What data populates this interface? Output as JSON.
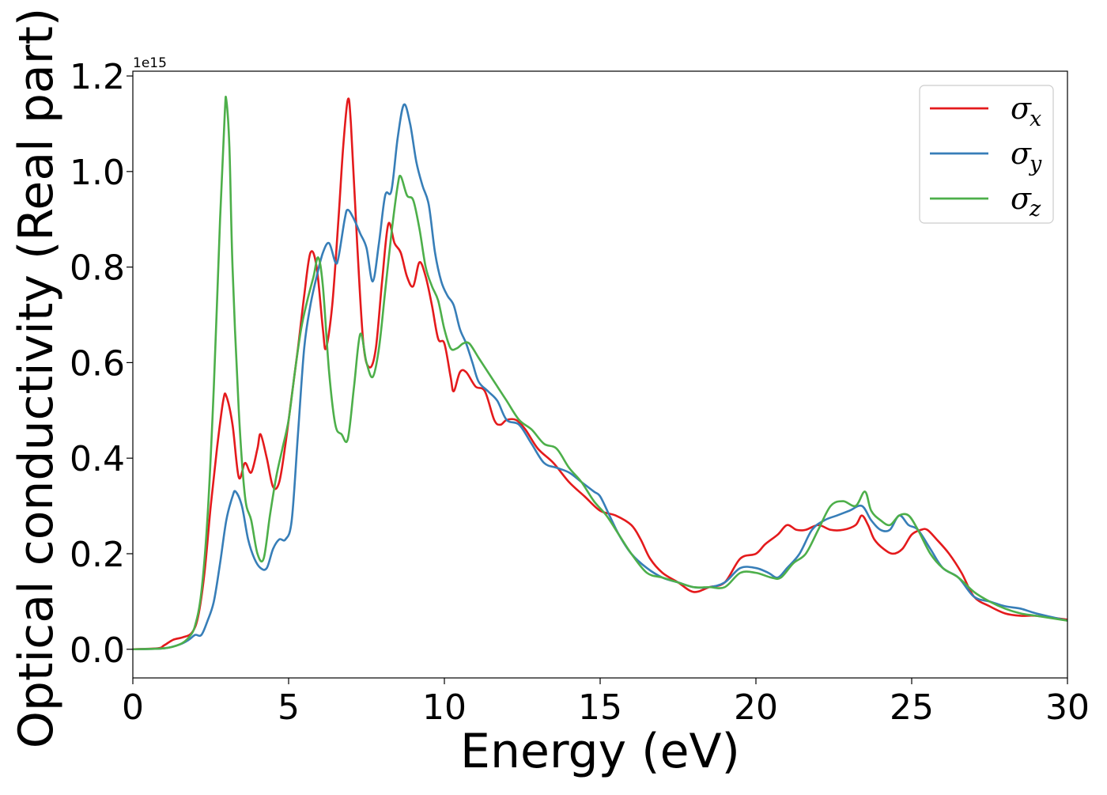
{
  "chart_data": {
    "type": "line",
    "title": "",
    "xlabel": "Energy (eV)",
    "ylabel": "Optical conductivity (Real part)",
    "xlim": [
      0,
      30
    ],
    "ylim": [
      -0.06,
      1.21
    ],
    "xticks": [
      0,
      5,
      10,
      15,
      20,
      25,
      30
    ],
    "xtick_labels": [
      "0",
      "5",
      "10",
      "15",
      "20",
      "25",
      "30"
    ],
    "yticks": [
      0.0,
      0.2,
      0.4,
      0.6,
      0.8,
      1.0,
      1.2
    ],
    "ytick_labels": [
      "0.0",
      "0.2",
      "0.4",
      "0.6",
      "0.8",
      "1.0",
      "1.2"
    ],
    "y_offset_text": "1e15",
    "grid": false,
    "legend_position": "top-right",
    "series": [
      {
        "name": "σx",
        "legend_symbol": "σ",
        "legend_subscript": "x",
        "color": "#e41a1c",
        "points": [
          [
            0,
            0
          ],
          [
            0.8,
            0.002
          ],
          [
            1.0,
            0.008
          ],
          [
            1.3,
            0.02
          ],
          [
            1.6,
            0.025
          ],
          [
            1.9,
            0.035
          ],
          [
            2.1,
            0.07
          ],
          [
            2.3,
            0.16
          ],
          [
            2.5,
            0.3
          ],
          [
            2.7,
            0.42
          ],
          [
            2.9,
            0.52
          ],
          [
            3.0,
            0.53
          ],
          [
            3.2,
            0.47
          ],
          [
            3.4,
            0.36
          ],
          [
            3.6,
            0.39
          ],
          [
            3.8,
            0.37
          ],
          [
            4.0,
            0.42
          ],
          [
            4.1,
            0.45
          ],
          [
            4.3,
            0.4
          ],
          [
            4.5,
            0.34
          ],
          [
            4.7,
            0.35
          ],
          [
            4.9,
            0.43
          ],
          [
            5.1,
            0.53
          ],
          [
            5.3,
            0.63
          ],
          [
            5.5,
            0.74
          ],
          [
            5.7,
            0.83
          ],
          [
            5.9,
            0.8
          ],
          [
            6.1,
            0.67
          ],
          [
            6.2,
            0.63
          ],
          [
            6.4,
            0.72
          ],
          [
            6.6,
            0.9
          ],
          [
            6.75,
            1.05
          ],
          [
            6.9,
            1.15
          ],
          [
            7.0,
            1.1
          ],
          [
            7.2,
            0.85
          ],
          [
            7.4,
            0.64
          ],
          [
            7.6,
            0.59
          ],
          [
            7.8,
            0.63
          ],
          [
            8.0,
            0.77
          ],
          [
            8.2,
            0.89
          ],
          [
            8.4,
            0.85
          ],
          [
            8.6,
            0.83
          ],
          [
            8.8,
            0.78
          ],
          [
            9.0,
            0.76
          ],
          [
            9.2,
            0.81
          ],
          [
            9.4,
            0.78
          ],
          [
            9.6,
            0.72
          ],
          [
            9.8,
            0.65
          ],
          [
            10.0,
            0.64
          ],
          [
            10.2,
            0.57
          ],
          [
            10.3,
            0.54
          ],
          [
            10.5,
            0.58
          ],
          [
            10.7,
            0.58
          ],
          [
            11.0,
            0.55
          ],
          [
            11.3,
            0.54
          ],
          [
            11.6,
            0.48
          ],
          [
            11.8,
            0.47
          ],
          [
            12.0,
            0.48
          ],
          [
            12.3,
            0.48
          ],
          [
            12.6,
            0.46
          ],
          [
            13.0,
            0.42
          ],
          [
            13.5,
            0.39
          ],
          [
            14.0,
            0.35
          ],
          [
            14.5,
            0.32
          ],
          [
            15.0,
            0.29
          ],
          [
            15.5,
            0.28
          ],
          [
            16.0,
            0.26
          ],
          [
            16.3,
            0.23
          ],
          [
            16.6,
            0.19
          ],
          [
            17.0,
            0.16
          ],
          [
            17.5,
            0.14
          ],
          [
            18.0,
            0.12
          ],
          [
            18.5,
            0.13
          ],
          [
            19.0,
            0.14
          ],
          [
            19.5,
            0.19
          ],
          [
            20.0,
            0.2
          ],
          [
            20.3,
            0.22
          ],
          [
            20.7,
            0.24
          ],
          [
            21.0,
            0.26
          ],
          [
            21.3,
            0.25
          ],
          [
            21.6,
            0.25
          ],
          [
            22.0,
            0.26
          ],
          [
            22.4,
            0.25
          ],
          [
            22.8,
            0.25
          ],
          [
            23.2,
            0.26
          ],
          [
            23.4,
            0.28
          ],
          [
            23.6,
            0.26
          ],
          [
            23.8,
            0.23
          ],
          [
            24.1,
            0.21
          ],
          [
            24.4,
            0.2
          ],
          [
            24.7,
            0.21
          ],
          [
            25.0,
            0.24
          ],
          [
            25.3,
            0.25
          ],
          [
            25.5,
            0.25
          ],
          [
            25.8,
            0.23
          ],
          [
            26.2,
            0.2
          ],
          [
            26.6,
            0.16
          ],
          [
            27.0,
            0.11
          ],
          [
            27.5,
            0.09
          ],
          [
            28.0,
            0.075
          ],
          [
            28.5,
            0.07
          ],
          [
            29.0,
            0.07
          ],
          [
            30.0,
            0.062
          ]
        ]
      },
      {
        "name": "σy",
        "legend_symbol": "σ",
        "legend_subscript": "y",
        "color": "#377eb8",
        "points": [
          [
            0,
            0
          ],
          [
            1.0,
            0.002
          ],
          [
            1.5,
            0.01
          ],
          [
            1.8,
            0.02
          ],
          [
            2.0,
            0.03
          ],
          [
            2.2,
            0.03
          ],
          [
            2.4,
            0.06
          ],
          [
            2.6,
            0.1
          ],
          [
            2.8,
            0.18
          ],
          [
            3.0,
            0.27
          ],
          [
            3.2,
            0.32
          ],
          [
            3.3,
            0.33
          ],
          [
            3.5,
            0.3
          ],
          [
            3.7,
            0.23
          ],
          [
            3.9,
            0.19
          ],
          [
            4.1,
            0.17
          ],
          [
            4.3,
            0.17
          ],
          [
            4.5,
            0.21
          ],
          [
            4.7,
            0.23
          ],
          [
            4.9,
            0.23
          ],
          [
            5.1,
            0.27
          ],
          [
            5.3,
            0.45
          ],
          [
            5.5,
            0.63
          ],
          [
            5.7,
            0.72
          ],
          [
            5.9,
            0.78
          ],
          [
            6.1,
            0.83
          ],
          [
            6.3,
            0.85
          ],
          [
            6.5,
            0.81
          ],
          [
            6.6,
            0.82
          ],
          [
            6.8,
            0.9
          ],
          [
            6.9,
            0.92
          ],
          [
            7.1,
            0.9
          ],
          [
            7.3,
            0.87
          ],
          [
            7.5,
            0.84
          ],
          [
            7.7,
            0.77
          ],
          [
            7.9,
            0.85
          ],
          [
            8.1,
            0.95
          ],
          [
            8.3,
            0.96
          ],
          [
            8.5,
            1.07
          ],
          [
            8.7,
            1.14
          ],
          [
            8.9,
            1.1
          ],
          [
            9.1,
            1.02
          ],
          [
            9.3,
            0.97
          ],
          [
            9.5,
            0.93
          ],
          [
            9.7,
            0.83
          ],
          [
            9.9,
            0.77
          ],
          [
            10.1,
            0.74
          ],
          [
            10.3,
            0.72
          ],
          [
            10.5,
            0.67
          ],
          [
            10.7,
            0.64
          ],
          [
            10.9,
            0.6
          ],
          [
            11.1,
            0.56
          ],
          [
            11.4,
            0.54
          ],
          [
            11.7,
            0.52
          ],
          [
            12.0,
            0.48
          ],
          [
            12.4,
            0.47
          ],
          [
            12.8,
            0.43
          ],
          [
            13.2,
            0.39
          ],
          [
            13.6,
            0.38
          ],
          [
            14.0,
            0.37
          ],
          [
            14.4,
            0.35
          ],
          [
            14.8,
            0.33
          ],
          [
            15.0,
            0.32
          ],
          [
            15.3,
            0.28
          ],
          [
            15.6,
            0.24
          ],
          [
            16.0,
            0.2
          ],
          [
            16.5,
            0.17
          ],
          [
            17.0,
            0.15
          ],
          [
            17.5,
            0.14
          ],
          [
            18.0,
            0.13
          ],
          [
            18.5,
            0.13
          ],
          [
            19.0,
            0.14
          ],
          [
            19.5,
            0.17
          ],
          [
            20.0,
            0.17
          ],
          [
            20.4,
            0.16
          ],
          [
            20.7,
            0.15
          ],
          [
            21.0,
            0.17
          ],
          [
            21.4,
            0.2
          ],
          [
            21.8,
            0.25
          ],
          [
            22.2,
            0.27
          ],
          [
            22.6,
            0.28
          ],
          [
            23.0,
            0.29
          ],
          [
            23.4,
            0.3
          ],
          [
            23.7,
            0.27
          ],
          [
            24.0,
            0.25
          ],
          [
            24.3,
            0.25
          ],
          [
            24.6,
            0.28
          ],
          [
            24.9,
            0.26
          ],
          [
            25.2,
            0.25
          ],
          [
            25.6,
            0.21
          ],
          [
            26.0,
            0.17
          ],
          [
            26.5,
            0.15
          ],
          [
            27.0,
            0.11
          ],
          [
            27.5,
            0.1
          ],
          [
            28.0,
            0.09
          ],
          [
            28.5,
            0.085
          ],
          [
            29.0,
            0.075
          ],
          [
            30.0,
            0.06
          ]
        ]
      },
      {
        "name": "σz",
        "legend_symbol": "σ",
        "legend_subscript": "z",
        "color": "#4daf4a",
        "points": [
          [
            0,
            0
          ],
          [
            1.0,
            0.002
          ],
          [
            1.5,
            0.01
          ],
          [
            1.8,
            0.025
          ],
          [
            2.0,
            0.05
          ],
          [
            2.2,
            0.12
          ],
          [
            2.4,
            0.28
          ],
          [
            2.6,
            0.55
          ],
          [
            2.8,
            0.9
          ],
          [
            2.95,
            1.12
          ],
          [
            3.0,
            1.15
          ],
          [
            3.1,
            1.05
          ],
          [
            3.2,
            0.8
          ],
          [
            3.4,
            0.5
          ],
          [
            3.6,
            0.32
          ],
          [
            3.8,
            0.27
          ],
          [
            4.0,
            0.2
          ],
          [
            4.2,
            0.19
          ],
          [
            4.4,
            0.28
          ],
          [
            4.6,
            0.36
          ],
          [
            4.8,
            0.42
          ],
          [
            5.0,
            0.48
          ],
          [
            5.2,
            0.58
          ],
          [
            5.4,
            0.67
          ],
          [
            5.6,
            0.73
          ],
          [
            5.8,
            0.78
          ],
          [
            5.95,
            0.82
          ],
          [
            6.1,
            0.76
          ],
          [
            6.3,
            0.58
          ],
          [
            6.5,
            0.47
          ],
          [
            6.7,
            0.45
          ],
          [
            6.9,
            0.44
          ],
          [
            7.1,
            0.55
          ],
          [
            7.3,
            0.66
          ],
          [
            7.5,
            0.6
          ],
          [
            7.7,
            0.57
          ],
          [
            7.9,
            0.63
          ],
          [
            8.1,
            0.75
          ],
          [
            8.3,
            0.87
          ],
          [
            8.5,
            0.97
          ],
          [
            8.6,
            0.99
          ],
          [
            8.8,
            0.95
          ],
          [
            9.0,
            0.94
          ],
          [
            9.2,
            0.88
          ],
          [
            9.4,
            0.8
          ],
          [
            9.6,
            0.76
          ],
          [
            9.8,
            0.73
          ],
          [
            10.0,
            0.67
          ],
          [
            10.2,
            0.63
          ],
          [
            10.4,
            0.63
          ],
          [
            10.6,
            0.64
          ],
          [
            10.8,
            0.64
          ],
          [
            11.1,
            0.61
          ],
          [
            11.4,
            0.58
          ],
          [
            11.7,
            0.55
          ],
          [
            12.0,
            0.52
          ],
          [
            12.4,
            0.48
          ],
          [
            12.8,
            0.46
          ],
          [
            13.2,
            0.43
          ],
          [
            13.6,
            0.42
          ],
          [
            14.0,
            0.38
          ],
          [
            14.4,
            0.35
          ],
          [
            14.8,
            0.31
          ],
          [
            15.2,
            0.28
          ],
          [
            15.6,
            0.24
          ],
          [
            16.0,
            0.2
          ],
          [
            16.5,
            0.16
          ],
          [
            17.0,
            0.15
          ],
          [
            17.5,
            0.14
          ],
          [
            18.0,
            0.13
          ],
          [
            18.5,
            0.13
          ],
          [
            19.0,
            0.13
          ],
          [
            19.5,
            0.16
          ],
          [
            20.0,
            0.16
          ],
          [
            20.5,
            0.15
          ],
          [
            20.8,
            0.15
          ],
          [
            21.2,
            0.18
          ],
          [
            21.6,
            0.2
          ],
          [
            22.0,
            0.25
          ],
          [
            22.4,
            0.3
          ],
          [
            22.8,
            0.31
          ],
          [
            23.2,
            0.3
          ],
          [
            23.5,
            0.33
          ],
          [
            23.7,
            0.29
          ],
          [
            24.0,
            0.27
          ],
          [
            24.3,
            0.26
          ],
          [
            24.6,
            0.28
          ],
          [
            24.9,
            0.28
          ],
          [
            25.2,
            0.25
          ],
          [
            25.6,
            0.2
          ],
          [
            26.0,
            0.17
          ],
          [
            26.5,
            0.15
          ],
          [
            27.0,
            0.12
          ],
          [
            27.5,
            0.1
          ],
          [
            28.0,
            0.085
          ],
          [
            28.5,
            0.075
          ],
          [
            29.0,
            0.07
          ],
          [
            30.0,
            0.06
          ]
        ]
      }
    ]
  }
}
